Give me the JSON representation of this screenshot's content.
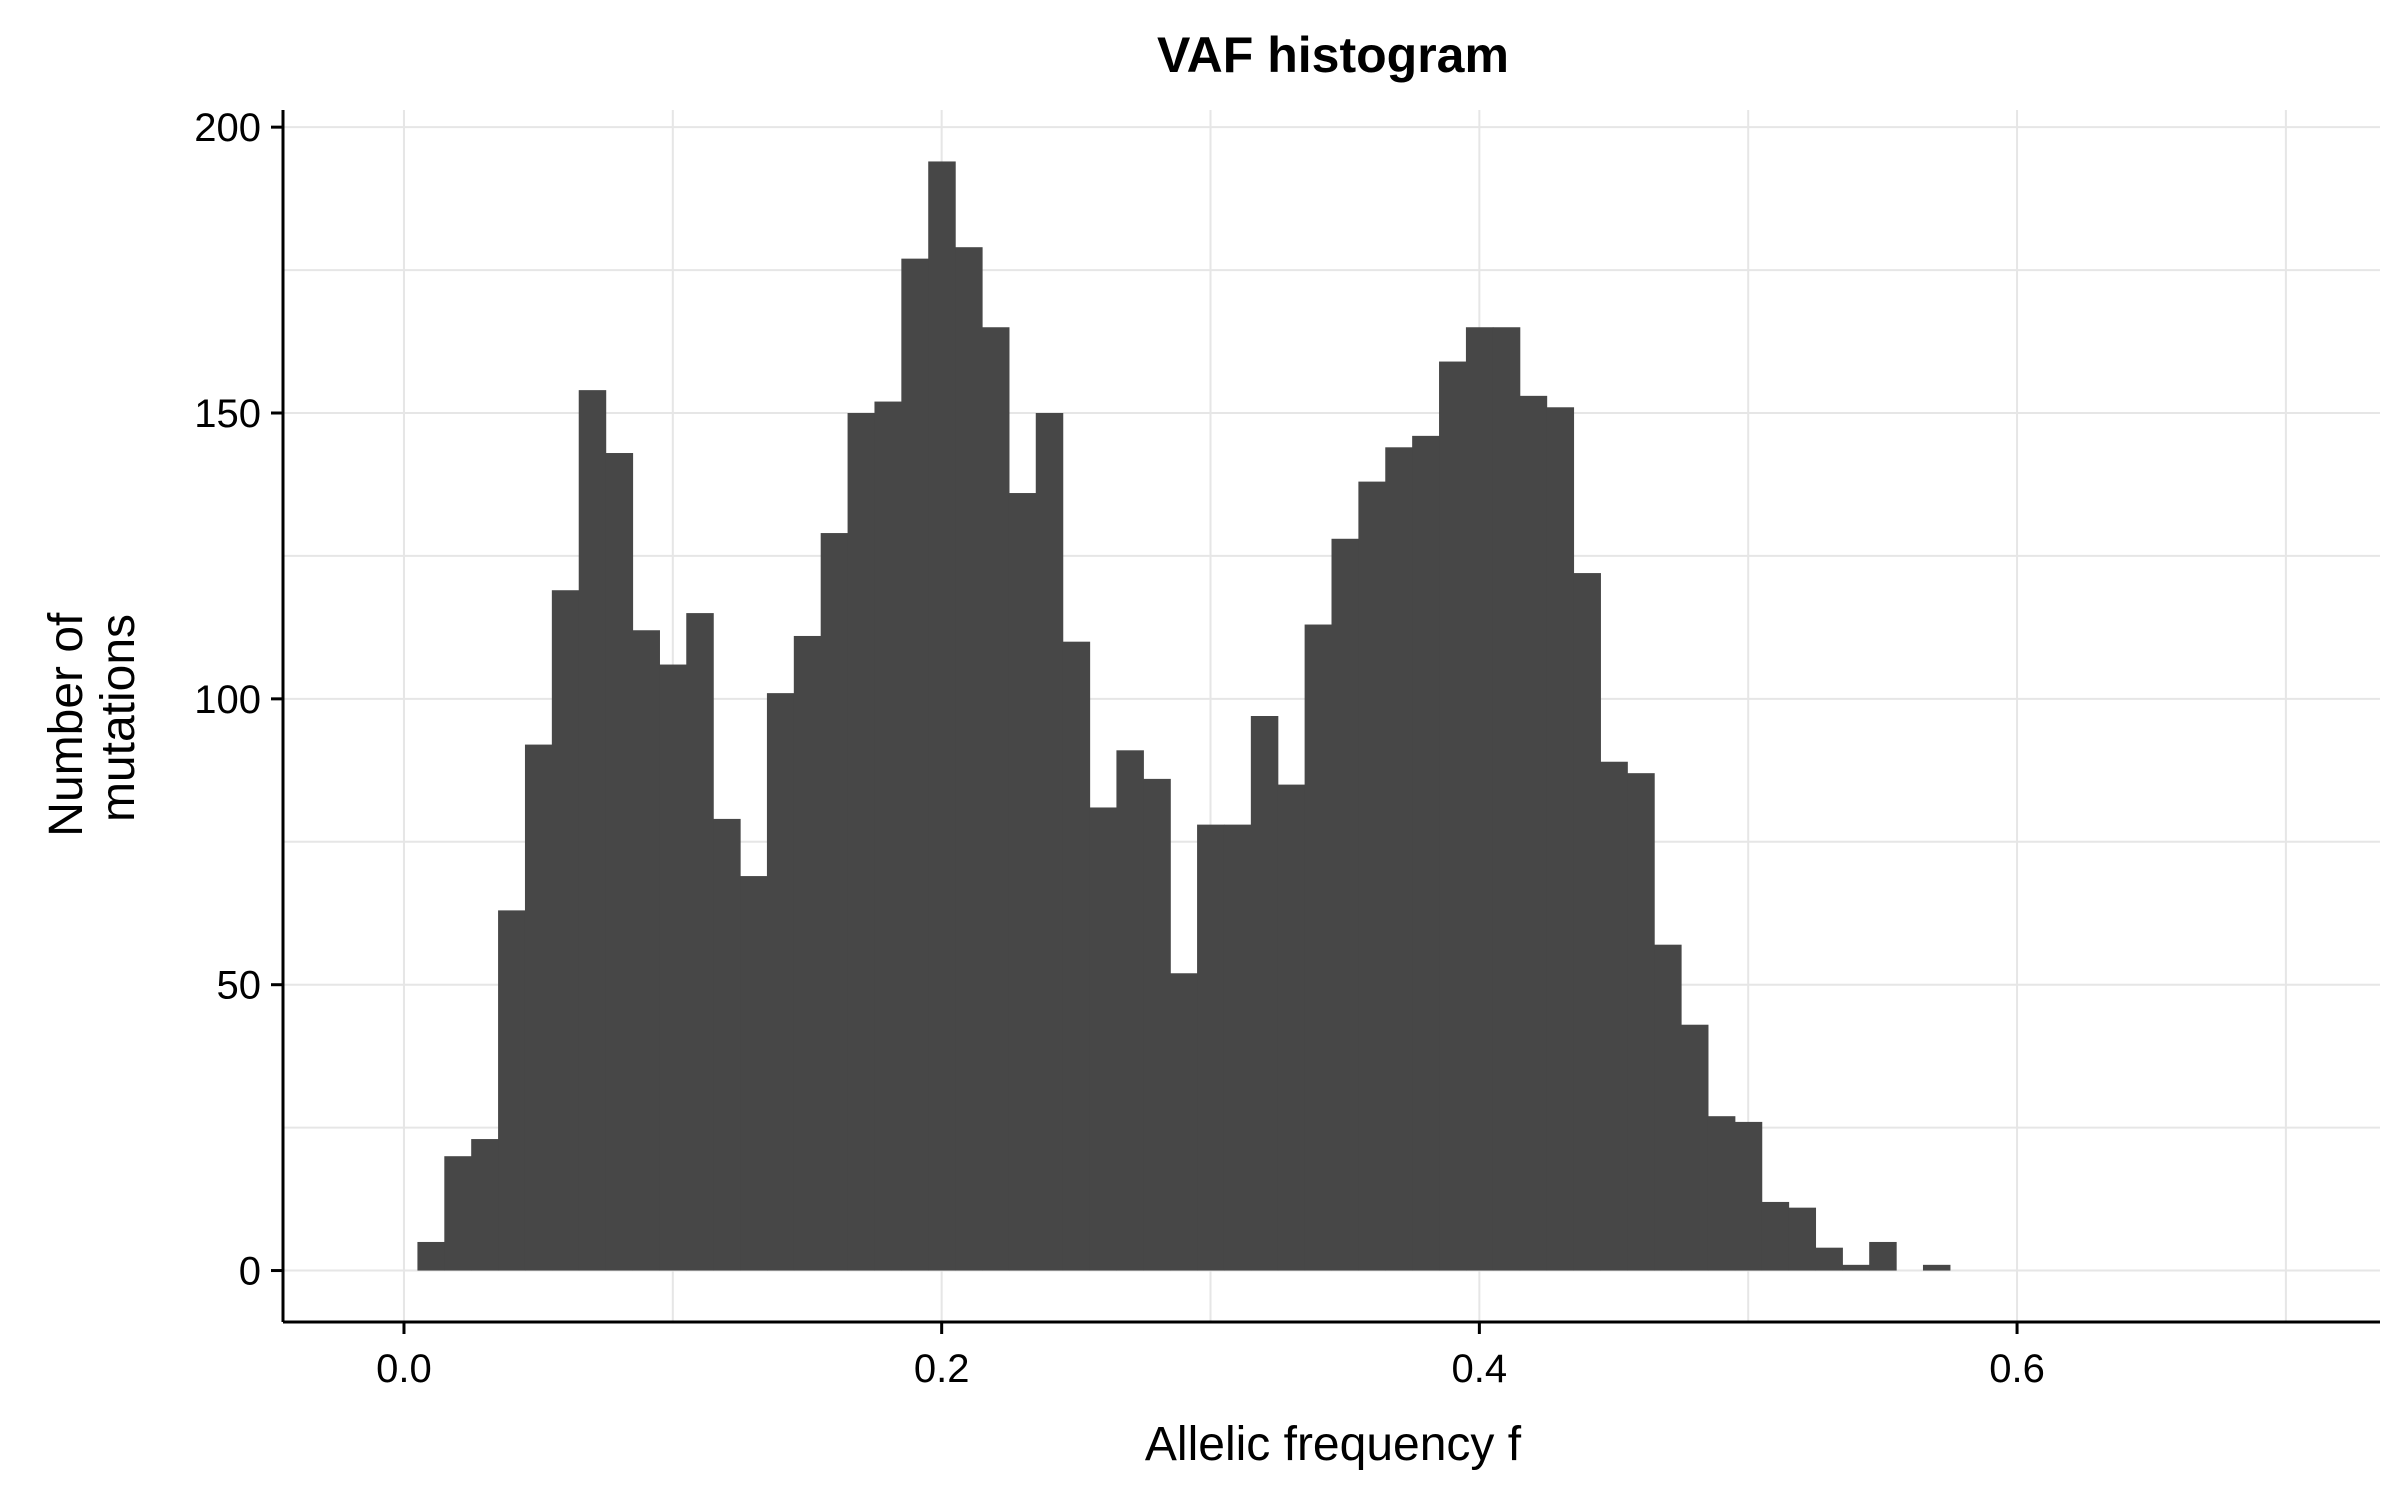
{
  "chart_data": {
    "type": "bar",
    "title": "VAF histogram",
    "xlabel": "Allelic frequency f",
    "ylabel_lines": [
      "Number of",
      "mutations"
    ],
    "xlim": [
      -0.045,
      0.735
    ],
    "ylim": [
      -9,
      203
    ],
    "xticks": [
      0.0,
      0.2,
      0.4,
      0.6
    ],
    "xtick_labels": [
      "0.0",
      "0.2",
      "0.4",
      "0.6"
    ],
    "yticks": [
      0,
      50,
      100,
      150,
      200
    ],
    "ytick_labels": [
      "0",
      "50",
      "100",
      "150",
      "200"
    ],
    "grid": true,
    "bar_color": "#474747",
    "bin_width": 0.01,
    "bin_centers": [
      0.01,
      0.02,
      0.03,
      0.04,
      0.05,
      0.06,
      0.07,
      0.08,
      0.09,
      0.1,
      0.11,
      0.12,
      0.13,
      0.14,
      0.15,
      0.16,
      0.17,
      0.18,
      0.19,
      0.2,
      0.21,
      0.22,
      0.23,
      0.24,
      0.25,
      0.26,
      0.27,
      0.28,
      0.29,
      0.3,
      0.31,
      0.32,
      0.33,
      0.34,
      0.35,
      0.36,
      0.37,
      0.38,
      0.39,
      0.4,
      0.41,
      0.42,
      0.43,
      0.44,
      0.45,
      0.46,
      0.47,
      0.48,
      0.49,
      0.5,
      0.51,
      0.52,
      0.53,
      0.54,
      0.55,
      0.56,
      0.57
    ],
    "counts": [
      5,
      20,
      23,
      63,
      92,
      119,
      154,
      143,
      112,
      106,
      115,
      79,
      69,
      101,
      111,
      129,
      150,
      152,
      177,
      194,
      179,
      165,
      136,
      150,
      110,
      81,
      91,
      86,
      52,
      78,
      78,
      97,
      85,
      113,
      128,
      138,
      144,
      146,
      159,
      165,
      165,
      153,
      151,
      122,
      89,
      87,
      57,
      43,
      27,
      26,
      12,
      11,
      4,
      1,
      5,
      0,
      1
    ]
  }
}
